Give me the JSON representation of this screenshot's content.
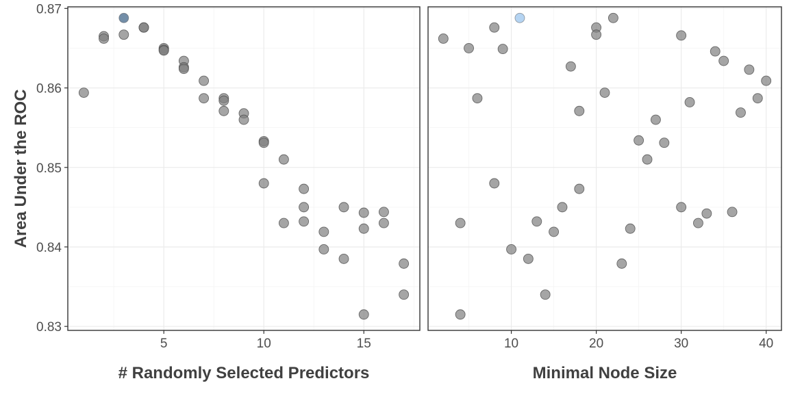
{
  "chart_data": [
    {
      "type": "scatter",
      "xlabel": "# Randomly Selected Predictors",
      "ylabel": "Area Under the ROC",
      "xlim": [
        0.2,
        17.8
      ],
      "ylim": [
        0.8295,
        0.8702
      ],
      "xticks": [
        5,
        10,
        15
      ],
      "yticks": [
        0.83,
        0.84,
        0.85,
        0.86,
        0.87
      ],
      "ytick_labels": [
        "0.83",
        "0.84",
        "0.85",
        "0.86",
        "0.87"
      ],
      "point_color": "#7f7f7f",
      "highlight_color": "#5b7a99",
      "x": [
        1,
        2,
        2,
        3,
        3,
        4,
        4,
        5,
        5,
        5,
        6,
        6,
        6,
        7,
        7,
        8,
        8,
        8,
        9,
        9,
        10,
        10,
        10,
        11,
        11,
        12,
        12,
        12,
        13,
        13,
        14,
        14,
        15,
        15,
        15,
        16,
        16,
        17,
        17
      ],
      "y": [
        0.8594,
        0.8665,
        0.8662,
        0.8688,
        0.8667,
        0.8676,
        0.8676,
        0.865,
        0.8648,
        0.8647,
        0.8634,
        0.8626,
        0.8624,
        0.8609,
        0.8587,
        0.8587,
        0.8584,
        0.8571,
        0.8568,
        0.856,
        0.8533,
        0.8531,
        0.848,
        0.851,
        0.843,
        0.8473,
        0.845,
        0.8432,
        0.8419,
        0.8397,
        0.845,
        0.8385,
        0.8443,
        0.8423,
        0.8315,
        0.8444,
        0.843,
        0.8379,
        0.834
      ],
      "highlight_index": 3
    },
    {
      "type": "scatter",
      "xlabel": "Minimal Node Size",
      "xlim": [
        0.2,
        41.8
      ],
      "ylim": [
        0.8295,
        0.8702
      ],
      "xticks": [
        10,
        20,
        30,
        40
      ],
      "point_color": "#7f7f7f",
      "highlight_color": "#a8cdf0",
      "x": [
        2,
        4,
        4,
        5,
        6,
        8,
        8,
        9,
        10,
        11,
        12,
        13,
        14,
        15,
        16,
        17,
        18,
        18,
        20,
        20,
        21,
        22,
        23,
        24,
        25,
        26,
        27,
        28,
        30,
        30,
        31,
        32,
        33,
        34,
        35,
        36,
        37,
        38,
        39,
        40
      ],
      "y": [
        0.8662,
        0.843,
        0.8315,
        0.865,
        0.8587,
        0.8676,
        0.848,
        0.8649,
        0.8397,
        0.8688,
        0.8385,
        0.8432,
        0.834,
        0.8419,
        0.845,
        0.8627,
        0.8571,
        0.8473,
        0.8676,
        0.8667,
        0.8594,
        0.8688,
        0.8379,
        0.8423,
        0.8534,
        0.851,
        0.856,
        0.8531,
        0.8666,
        0.845,
        0.8582,
        0.843,
        0.8442,
        0.8646,
        0.8634,
        0.8444,
        0.8569,
        0.8623,
        0.8587,
        0.8609
      ],
      "highlight_index": 9
    }
  ]
}
